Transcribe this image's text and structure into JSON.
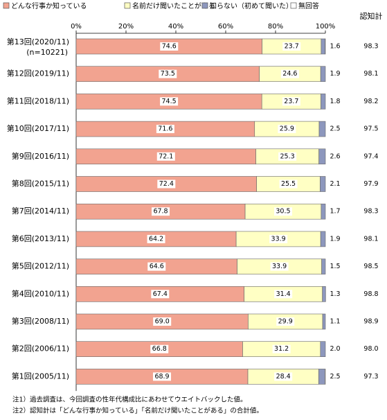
{
  "chart_data": {
    "type": "stacked-bar-horizontal",
    "categories": [
      "第13回(2020/11)",
      "第12回(2019/11)",
      "第11回(2018/11)",
      "第10回(2017/11)",
      "第9回(2016/11)",
      "第8回(2015/11)",
      "第7回(2014/11)",
      "第6回(2013/11)",
      "第5回(2012/11)",
      "第4回(2010/11)",
      "第3回(2008/11)",
      "第2回(2006/11)",
      "第1回(2005/11)"
    ],
    "sample_note": "(n=10221)",
    "series": [
      {
        "name": "どんな行事か知っている",
        "color": "#f2a390",
        "values": [
          74.6,
          73.5,
          74.5,
          71.6,
          72.1,
          72.4,
          67.8,
          64.2,
          64.6,
          67.4,
          69.0,
          66.8,
          68.9
        ],
        "value_labels": [
          "74.6",
          "73.5",
          "74.5",
          "71.6",
          "72.1",
          "72.4",
          "67.8",
          "64.2",
          "64.6",
          "67.4",
          "69.0",
          "66.8",
          "68.9"
        ]
      },
      {
        "name": "名前だけ聞いたことがある",
        "color": "#ffffc4",
        "values": [
          23.7,
          24.6,
          23.7,
          25.9,
          25.3,
          25.5,
          30.5,
          33.9,
          33.9,
          31.4,
          29.9,
          31.2,
          28.4
        ],
        "value_labels": [
          "23.7",
          "24.6",
          "23.7",
          "25.9",
          "25.3",
          "25.5",
          "30.5",
          "33.9",
          "33.9",
          "31.4",
          "29.9",
          "31.2",
          "28.4"
        ]
      },
      {
        "name": "知らない（初めて聞いた）",
        "color": "#8d97bd",
        "values": [
          1.6,
          1.9,
          1.8,
          2.5,
          2.6,
          2.1,
          1.7,
          1.9,
          1.5,
          1.3,
          1.1,
          2.0,
          2.5
        ],
        "value_labels": [
          "1.6",
          "1.9",
          "1.8",
          "2.5",
          "2.6",
          "2.1",
          "1.7",
          "1.9",
          "1.5",
          "1.3",
          "1.1",
          "2.0",
          "2.5"
        ]
      },
      {
        "name": "無回答",
        "color": "#ffffff",
        "values": [
          0.1,
          0,
          0,
          0,
          0,
          0,
          0,
          0,
          0,
          0,
          0,
          0,
          0.2
        ]
      }
    ],
    "totals": {
      "label": "認知計",
      "values": [
        98.3,
        98.1,
        98.2,
        97.5,
        97.4,
        97.9,
        98.3,
        98.1,
        98.5,
        98.8,
        98.9,
        98.0,
        97.3
      ],
      "value_labels": [
        "98.3",
        "98.1",
        "98.2",
        "97.5",
        "97.4",
        "97.9",
        "98.3",
        "98.1",
        "98.5",
        "98.8",
        "98.9",
        "98.0",
        "97.3"
      ]
    },
    "xlim": [
      0,
      100
    ],
    "xticks": [
      {
        "value": 0,
        "label": "0%"
      },
      {
        "value": 20,
        "label": "20%"
      },
      {
        "value": 40,
        "label": "40%"
      },
      {
        "value": 60,
        "label": "60%"
      },
      {
        "value": 80,
        "label": "80%"
      },
      {
        "value": 100,
        "label": "100%"
      }
    ],
    "notes": [
      "注1）過去調査は、今回調査の性年代構成比にあわせてウエイトバックした値。",
      "注2）認知計は「どんな行事か知っている」「名前だけ聞いたことがある」の合計値。"
    ]
  }
}
